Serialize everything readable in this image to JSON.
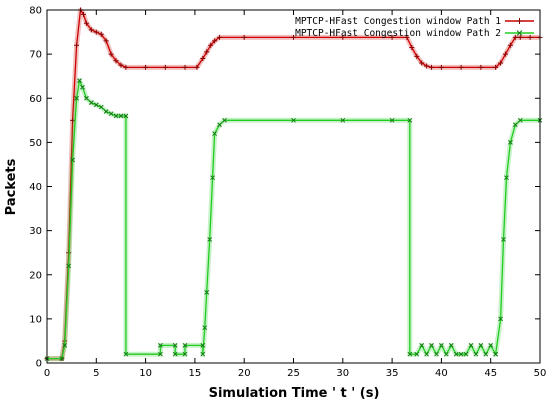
{
  "chart_data": {
    "type": "line",
    "title": "",
    "xlabel": "Simulation Time ' t ' (s)",
    "ylabel": "Packets",
    "xlim": [
      0,
      50
    ],
    "ylim": [
      0,
      80
    ],
    "xticks": [
      "0",
      "5",
      "10",
      "15",
      "20",
      "25",
      "30",
      "35",
      "40",
      "45",
      "50"
    ],
    "yticks": [
      "0",
      "10",
      "20",
      "30",
      "40",
      "50",
      "60",
      "70",
      "80"
    ],
    "grid": false,
    "legend_position": "top-right",
    "series": [
      {
        "name": "MPTCP-HFast Congestion window Path 1",
        "color": "#cc0000",
        "marker": "plus",
        "x": [
          0,
          1.5,
          1.8,
          2.2,
          2.6,
          3.0,
          3.4,
          3.7,
          4.0,
          4.5,
          5.0,
          5.5,
          6.0,
          6.5,
          7.0,
          7.5,
          8.0,
          10.0,
          12.0,
          14.0,
          15.2,
          15.8,
          16.2,
          16.6,
          17.0,
          17.5,
          20.0,
          25.0,
          30.0,
          35.0,
          36.5,
          37.0,
          37.5,
          38.0,
          38.5,
          39.0,
          40.0,
          42.0,
          44.0,
          45.5,
          46.0,
          46.5,
          47.0,
          47.5,
          48.0,
          49.0,
          50.0
        ],
        "y": [
          1,
          1,
          5,
          25,
          55,
          72,
          80,
          79,
          77,
          75.5,
          75,
          74.5,
          73,
          70,
          68.5,
          67.5,
          67,
          67,
          67,
          67,
          67,
          69,
          70.5,
          72,
          73,
          73.8,
          73.8,
          73.8,
          73.8,
          73.8,
          73.8,
          71.5,
          69.5,
          68,
          67.3,
          67,
          67,
          67,
          67,
          67,
          68,
          70,
          72,
          73.8,
          73.8,
          73.8,
          73.8
        ]
      },
      {
        "name": "MPTCP-HFast Congestion window Path 2",
        "color": "#22cc22",
        "marker": "x",
        "x": [
          0,
          1.5,
          1.8,
          2.2,
          2.6,
          3.0,
          3.3,
          3.6,
          4.0,
          4.5,
          5.0,
          5.5,
          6.0,
          6.5,
          7.0,
          7.5,
          8.0,
          8.0,
          11.5,
          11.5,
          13.0,
          13.0,
          14.0,
          14.0,
          15.8,
          15.8,
          16.0,
          16.2,
          16.5,
          16.8,
          17.0,
          17.5,
          18.0,
          25.0,
          30.0,
          35.0,
          36.8,
          36.8,
          37.5,
          38.0,
          38.5,
          39.0,
          39.5,
          40.0,
          40.5,
          41.0,
          41.5,
          42.0,
          42.5,
          43.0,
          43.5,
          44.0,
          44.5,
          45.0,
          45.5,
          45.5,
          46.0,
          46.3,
          46.6,
          47.0,
          47.5,
          48.0,
          50.0
        ],
        "y": [
          1,
          1,
          4,
          22,
          46,
          60,
          64,
          62.5,
          60,
          59,
          58.5,
          58,
          57,
          56.5,
          56,
          56,
          56,
          2,
          2,
          4,
          4,
          2,
          2,
          4,
          4,
          2,
          8,
          16,
          28,
          42,
          52,
          54,
          55,
          55,
          55,
          55,
          55,
          2,
          2,
          4,
          2,
          4,
          2,
          4,
          2,
          4,
          2,
          2,
          2,
          4,
          2,
          4,
          2,
          4,
          2,
          2,
          10,
          28,
          42,
          50,
          54,
          55,
          55
        ]
      }
    ]
  }
}
